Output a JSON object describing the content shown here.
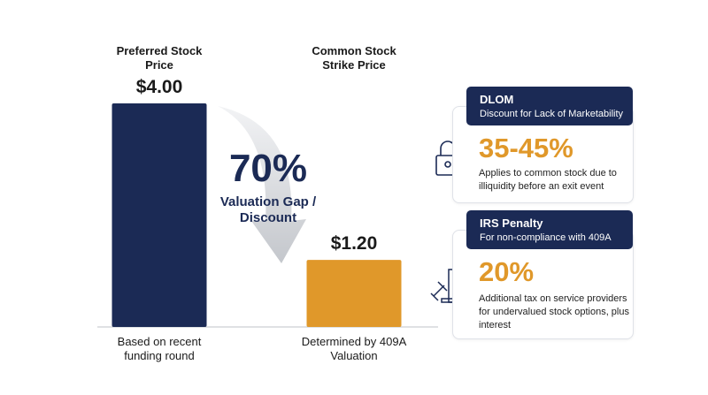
{
  "chart_data": {
    "type": "bar",
    "categories": [
      "Preferred Stock Price",
      "Common Stock Strike Price"
    ],
    "values": [
      4,
      1.2
    ],
    "value_labels": [
      "$4.00",
      "$1.20"
    ],
    "colors": [
      "#1b2a55",
      "#e0982a"
    ],
    "notes": [
      "Based on recent funding round",
      "Determined by 409A Valuation"
    ],
    "annotation": {
      "value": "70%",
      "label": "Valuation Gap / Discount"
    }
  },
  "cards": [
    {
      "title": "DLOM",
      "subtitle": "Discount for Lack of Marketability",
      "figure": "35-45%",
      "text": "Applies to common stock due to illiquidity before an exit event"
    },
    {
      "title": "IRS Penalty",
      "subtitle": "For non-compliance with 409A",
      "figure": "20%",
      "text": "Additional tax on service providers for undervalued stock options, plus interest"
    }
  ]
}
